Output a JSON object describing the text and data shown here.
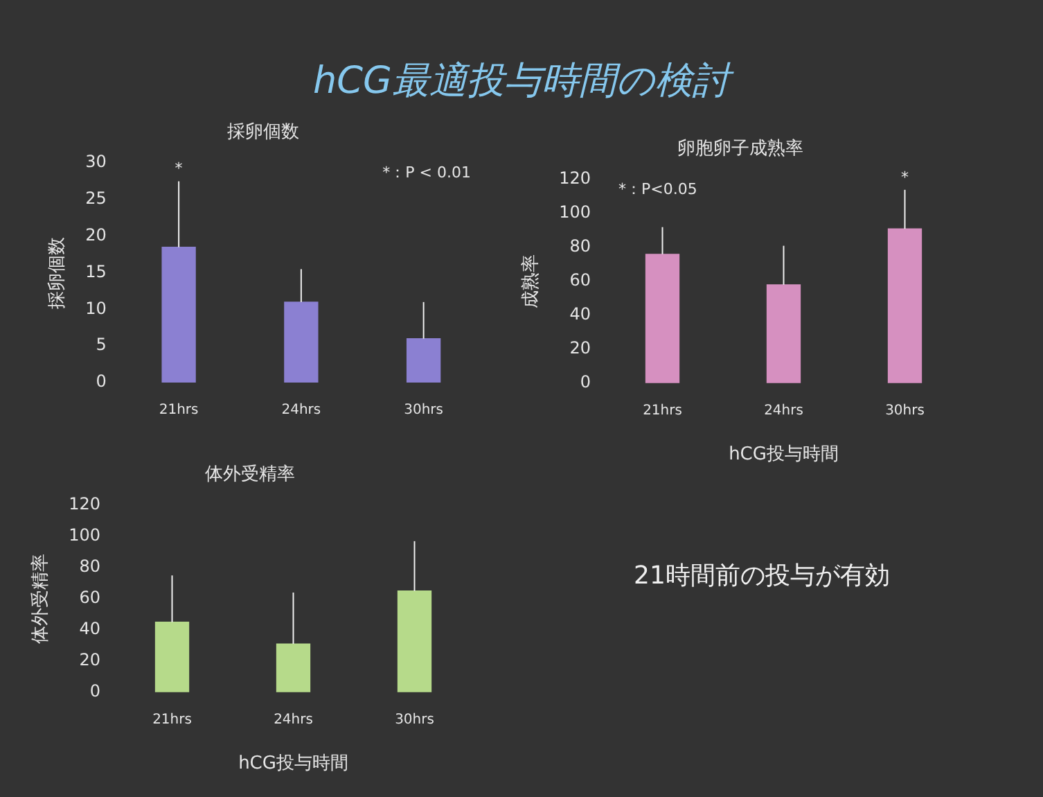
{
  "chart_data": [
    {
      "type": "other",
      "title": "hCG最適投与時間の検討"
    },
    {
      "type": "bar",
      "title": "採卵個数",
      "ylabel": "採卵個数",
      "categories": [
        "21hrs",
        "24hrs",
        "30hrs"
      ],
      "values": [
        18.5,
        11,
        6
      ],
      "errors": [
        [
          18.5,
          27.5
        ],
        [
          11,
          15.5
        ],
        [
          6,
          11
        ]
      ],
      "color": "#8b80d2",
      "ylim": [
        0,
        30
      ],
      "yticks": [
        0,
        5,
        10,
        15,
        20,
        25,
        30
      ],
      "grid": false,
      "legend": false,
      "annotations": [
        {
          "text": "*",
          "x": "21hrs",
          "y": 27.5
        },
        "*：P < 0.01"
      ]
    },
    {
      "type": "bar",
      "title": "卵胞卵子成熟率",
      "ylabel": "成熟率",
      "xlabel": "hCG投与時間",
      "categories": [
        "21hrs",
        "24hrs",
        "30hrs"
      ],
      "values": [
        76,
        58,
        91
      ],
      "errors": [
        [
          76,
          92
        ],
        [
          58,
          81
        ],
        [
          91,
          114
        ]
      ],
      "color": "#d690c0",
      "ylim": [
        0,
        120
      ],
      "yticks": [
        0,
        20,
        40,
        60,
        80,
        100,
        120
      ],
      "grid": false,
      "legend": false,
      "annotations": [
        {
          "text": "*",
          "x": "30hrs",
          "y": 114
        },
        "*：P<0.05"
      ]
    },
    {
      "type": "bar",
      "title": "体外受精率",
      "ylabel": "体外受精率",
      "xlabel": "hCG投与時間",
      "categories": [
        "21hrs",
        "24hrs",
        "30hrs"
      ],
      "values": [
        45,
        31,
        65
      ],
      "errors": [
        [
          45,
          75
        ],
        [
          31,
          64
        ],
        [
          65,
          97
        ]
      ],
      "color": "#b6da8a",
      "ylim": [
        0,
        120
      ],
      "yticks": [
        0,
        20,
        40,
        60,
        80,
        100,
        120
      ],
      "grid": false,
      "legend": false
    },
    {
      "type": "other",
      "annotations": [
        "21時間前の投与が有効"
      ]
    }
  ]
}
